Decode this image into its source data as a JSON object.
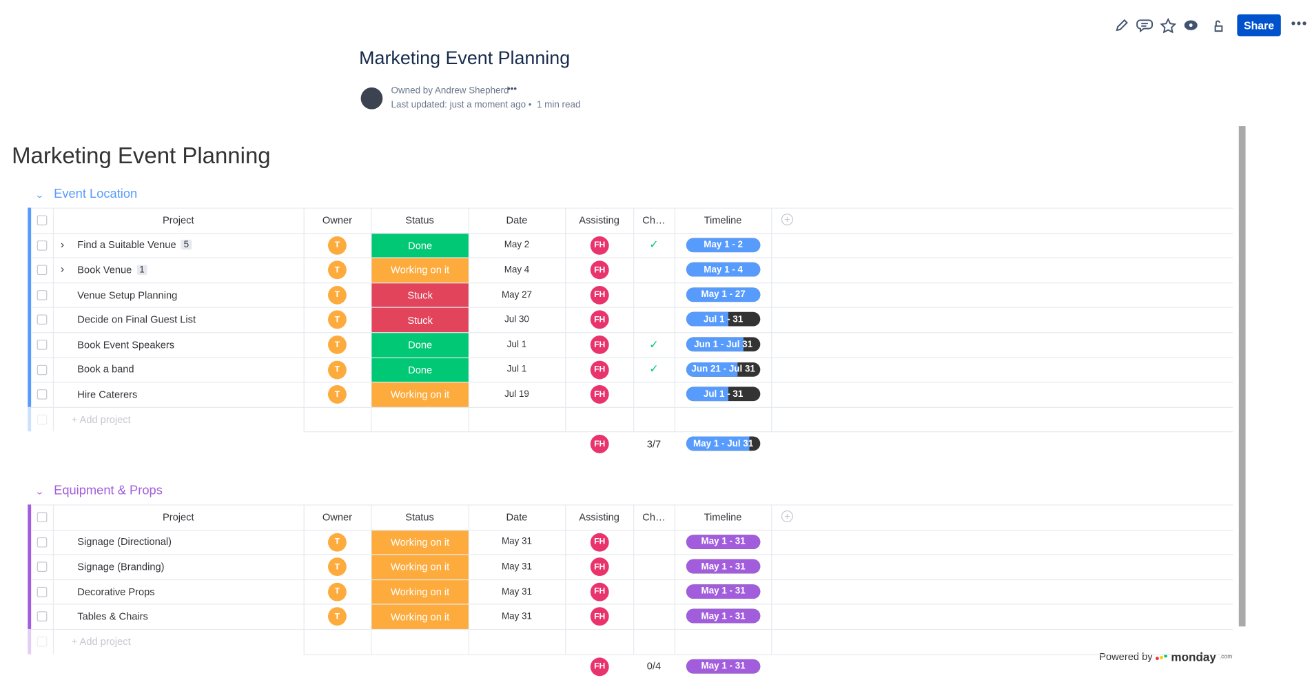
{
  "toolbar": {
    "share": "Share"
  },
  "header": {
    "title": "Marketing Event Planning",
    "owner": "Owned by Andrew Shepherd",
    "updated": "Last updated: just a moment ago",
    "read": "1 min read"
  },
  "board": {
    "title": "Marketing Event Planning",
    "columns": [
      "Project",
      "Owner",
      "Status",
      "Date",
      "Assisting",
      "Ch…",
      "Timeline"
    ],
    "add_row": "+ Add project",
    "groups": [
      {
        "name": "Event Location",
        "color": "#579bfc",
        "rows": [
          {
            "project": "Find a Suitable Venue",
            "subitems": "5",
            "owner": "T",
            "status": "Done",
            "status_color": "#00c875",
            "date": "May 2",
            "assisting": "FH",
            "check": true,
            "timeline": "May 1 - 2",
            "timeline_filled": 100
          },
          {
            "project": "Book Venue",
            "subitems": "1",
            "owner": "T",
            "status": "Working on it",
            "status_color": "#fdab3d",
            "date": "May 4",
            "assisting": "FH",
            "check": false,
            "timeline": "May 1 - 4",
            "timeline_filled": 100
          },
          {
            "project": "Venue Setup Planning",
            "owner": "T",
            "status": "Stuck",
            "status_color": "#e2445c",
            "date": "May 27",
            "assisting": "FH",
            "check": false,
            "timeline": "May 1 - 27",
            "timeline_filled": 100
          },
          {
            "project": "Decide on Final Guest List",
            "owner": "T",
            "status": "Stuck",
            "status_color": "#e2445c",
            "date": "Jul 30",
            "assisting": "FH",
            "check": false,
            "timeline": "Jul 1 - 31",
            "timeline_filled": 57
          },
          {
            "project": "Book Event Speakers",
            "owner": "T",
            "status": "Done",
            "status_color": "#00c875",
            "date": "Jul 1",
            "assisting": "FH",
            "check": true,
            "timeline": "Jun 1 - Jul 31",
            "timeline_filled": 77
          },
          {
            "project": "Book a band",
            "owner": "T",
            "status": "Done",
            "status_color": "#00c875",
            "date": "Jul 1",
            "assisting": "FH",
            "check": true,
            "timeline": "Jun 21 - Jul 31",
            "timeline_filled": 69
          },
          {
            "project": "Hire Caterers",
            "owner": "T",
            "status": "Working on it",
            "status_color": "#fdab3d",
            "date": "Jul 19",
            "assisting": "FH",
            "check": false,
            "timeline": "Jul 1 - 31",
            "timeline_filled": 57
          }
        ],
        "summary": {
          "assisting": "FH",
          "check": "3/7",
          "timeline": "May 1 - Jul 31",
          "timeline_filled": 85
        }
      },
      {
        "name": "Equipment & Props",
        "color": "#a25ddc",
        "rows": [
          {
            "project": "Signage (Directional)",
            "owner": "T",
            "status": "Working on it",
            "status_color": "#fdab3d",
            "date": "May 31",
            "assisting": "FH",
            "check": false,
            "timeline": "May 1 - 31",
            "timeline_filled": 100
          },
          {
            "project": "Signage (Branding)",
            "owner": "T",
            "status": "Working on it",
            "status_color": "#fdab3d",
            "date": "May 31",
            "assisting": "FH",
            "check": false,
            "timeline": "May 1 - 31",
            "timeline_filled": 100
          },
          {
            "project": "Decorative Props",
            "owner": "T",
            "status": "Working on it",
            "status_color": "#fdab3d",
            "date": "May 31",
            "assisting": "FH",
            "check": false,
            "timeline": "May 1 - 31",
            "timeline_filled": 100
          },
          {
            "project": "Tables & Chairs",
            "owner": "T",
            "status": "Working on it",
            "status_color": "#fdab3d",
            "date": "May 31",
            "assisting": "FH",
            "check": false,
            "timeline": "May 1 - 31",
            "timeline_filled": 100
          }
        ],
        "summary": {
          "assisting": "FH",
          "check": "0/4",
          "timeline": "May 1 - 31",
          "timeline_filled": 100
        }
      }
    ]
  },
  "footer": {
    "powered": "Powered by",
    "brand": "monday",
    "suffix": ".com"
  }
}
